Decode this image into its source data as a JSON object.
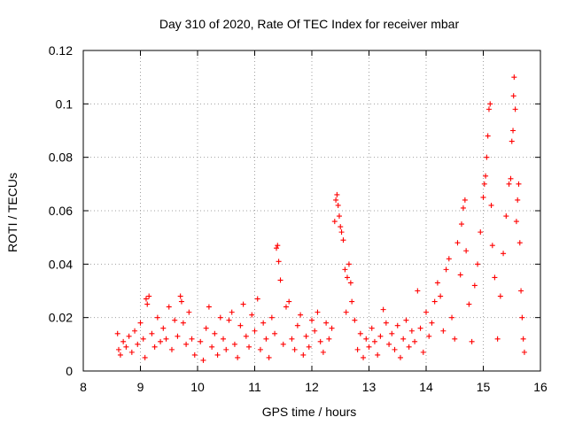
{
  "chart_data": {
    "type": "scatter",
    "title": "Day 310 of 2020, Rate Of TEC Index for receiver mbar",
    "xlabel": "GPS time / hours",
    "ylabel": "ROTI / TECUs",
    "xlim": [
      8,
      16
    ],
    "ylim": [
      0,
      0.12
    ],
    "xticks": [
      8,
      9,
      10,
      11,
      12,
      13,
      14,
      15,
      16
    ],
    "xtick_labels": [
      "8",
      "9",
      "10",
      "11",
      "12",
      "13",
      "14",
      "15",
      "16"
    ],
    "yticks": [
      0,
      0.02,
      0.04,
      0.06,
      0.08,
      0.1,
      0.12
    ],
    "ytick_labels": [
      "0",
      "0.02",
      "0.04",
      "0.06",
      "0.08",
      "0.1",
      "0.12"
    ],
    "grid": true,
    "marker": "+",
    "series": [
      {
        "name": "ROTI",
        "color": "#ff0000",
        "points": [
          [
            8.6,
            0.014
          ],
          [
            8.62,
            0.008
          ],
          [
            8.65,
            0.006
          ],
          [
            8.7,
            0.011
          ],
          [
            8.75,
            0.009
          ],
          [
            8.8,
            0.013
          ],
          [
            8.85,
            0.007
          ],
          [
            8.9,
            0.015
          ],
          [
            8.95,
            0.01
          ],
          [
            9.0,
            0.018
          ],
          [
            9.05,
            0.012
          ],
          [
            9.08,
            0.005
          ],
          [
            9.1,
            0.027
          ],
          [
            9.12,
            0.025
          ],
          [
            9.15,
            0.028
          ],
          [
            9.2,
            0.014
          ],
          [
            9.25,
            0.009
          ],
          [
            9.3,
            0.02
          ],
          [
            9.35,
            0.011
          ],
          [
            9.4,
            0.016
          ],
          [
            9.45,
            0.012
          ],
          [
            9.5,
            0.024
          ],
          [
            9.55,
            0.008
          ],
          [
            9.6,
            0.019
          ],
          [
            9.65,
            0.013
          ],
          [
            9.7,
            0.028
          ],
          [
            9.72,
            0.026
          ],
          [
            9.75,
            0.018
          ],
          [
            9.8,
            0.01
          ],
          [
            9.85,
            0.022
          ],
          [
            9.9,
            0.012
          ],
          [
            9.95,
            0.006
          ],
          [
            10.05,
            0.011
          ],
          [
            10.1,
            0.004
          ],
          [
            10.15,
            0.016
          ],
          [
            10.2,
            0.024
          ],
          [
            10.25,
            0.009
          ],
          [
            10.3,
            0.014
          ],
          [
            10.35,
            0.006
          ],
          [
            10.4,
            0.02
          ],
          [
            10.45,
            0.012
          ],
          [
            10.5,
            0.008
          ],
          [
            10.55,
            0.019
          ],
          [
            10.6,
            0.022
          ],
          [
            10.65,
            0.01
          ],
          [
            10.7,
            0.005
          ],
          [
            10.75,
            0.017
          ],
          [
            10.8,
            0.025
          ],
          [
            10.85,
            0.013
          ],
          [
            10.9,
            0.009
          ],
          [
            10.95,
            0.021
          ],
          [
            11.0,
            0.015
          ],
          [
            11.05,
            0.027
          ],
          [
            11.1,
            0.008
          ],
          [
            11.15,
            0.018
          ],
          [
            11.2,
            0.012
          ],
          [
            11.25,
            0.005
          ],
          [
            11.3,
            0.02
          ],
          [
            11.35,
            0.014
          ],
          [
            11.38,
            0.046
          ],
          [
            11.4,
            0.047
          ],
          [
            11.42,
            0.041
          ],
          [
            11.45,
            0.034
          ],
          [
            11.5,
            0.01
          ],
          [
            11.55,
            0.024
          ],
          [
            11.6,
            0.026
          ],
          [
            11.65,
            0.012
          ],
          [
            11.7,
            0.008
          ],
          [
            11.75,
            0.017
          ],
          [
            11.8,
            0.021
          ],
          [
            11.85,
            0.006
          ],
          [
            11.9,
            0.013
          ],
          [
            11.95,
            0.009
          ],
          [
            12.0,
            0.019
          ],
          [
            12.05,
            0.015
          ],
          [
            12.1,
            0.022
          ],
          [
            12.15,
            0.011
          ],
          [
            12.2,
            0.007
          ],
          [
            12.25,
            0.018
          ],
          [
            12.3,
            0.012
          ],
          [
            12.35,
            0.016
          ],
          [
            12.4,
            0.056
          ],
          [
            12.42,
            0.064
          ],
          [
            12.44,
            0.066
          ],
          [
            12.46,
            0.062
          ],
          [
            12.48,
            0.058
          ],
          [
            12.5,
            0.054
          ],
          [
            12.52,
            0.052
          ],
          [
            12.55,
            0.049
          ],
          [
            12.58,
            0.038
          ],
          [
            12.6,
            0.022
          ],
          [
            12.62,
            0.035
          ],
          [
            12.65,
            0.04
          ],
          [
            12.68,
            0.033
          ],
          [
            12.7,
            0.026
          ],
          [
            12.75,
            0.019
          ],
          [
            12.8,
            0.008
          ],
          [
            12.85,
            0.014
          ],
          [
            12.9,
            0.005
          ],
          [
            12.95,
            0.012
          ],
          [
            13.0,
            0.009
          ],
          [
            13.05,
            0.016
          ],
          [
            13.1,
            0.011
          ],
          [
            13.15,
            0.006
          ],
          [
            13.2,
            0.013
          ],
          [
            13.25,
            0.023
          ],
          [
            13.3,
            0.018
          ],
          [
            13.35,
            0.01
          ],
          [
            13.4,
            0.014
          ],
          [
            13.45,
            0.008
          ],
          [
            13.5,
            0.017
          ],
          [
            13.55,
            0.005
          ],
          [
            13.6,
            0.012
          ],
          [
            13.65,
            0.019
          ],
          [
            13.7,
            0.009
          ],
          [
            13.75,
            0.015
          ],
          [
            13.8,
            0.011
          ],
          [
            13.85,
            0.03
          ],
          [
            13.9,
            0.016
          ],
          [
            13.95,
            0.007
          ],
          [
            14.0,
            0.022
          ],
          [
            14.05,
            0.013
          ],
          [
            14.1,
            0.018
          ],
          [
            14.15,
            0.026
          ],
          [
            14.2,
            0.033
          ],
          [
            14.25,
            0.028
          ],
          [
            14.3,
            0.015
          ],
          [
            14.35,
            0.038
          ],
          [
            14.4,
            0.042
          ],
          [
            14.45,
            0.02
          ],
          [
            14.5,
            0.012
          ],
          [
            14.55,
            0.048
          ],
          [
            14.6,
            0.036
          ],
          [
            14.62,
            0.055
          ],
          [
            14.65,
            0.061
          ],
          [
            14.68,
            0.064
          ],
          [
            14.7,
            0.045
          ],
          [
            14.75,
            0.025
          ],
          [
            14.8,
            0.011
          ],
          [
            14.85,
            0.032
          ],
          [
            14.9,
            0.04
          ],
          [
            14.95,
            0.052
          ],
          [
            15.0,
            0.065
          ],
          [
            15.02,
            0.07
          ],
          [
            15.04,
            0.073
          ],
          [
            15.06,
            0.08
          ],
          [
            15.08,
            0.088
          ],
          [
            15.1,
            0.098
          ],
          [
            15.12,
            0.1
          ],
          [
            15.14,
            0.062
          ],
          [
            15.16,
            0.047
          ],
          [
            15.2,
            0.035
          ],
          [
            15.25,
            0.012
          ],
          [
            15.3,
            0.028
          ],
          [
            15.35,
            0.044
          ],
          [
            15.4,
            0.058
          ],
          [
            15.45,
            0.07
          ],
          [
            15.48,
            0.072
          ],
          [
            15.5,
            0.086
          ],
          [
            15.52,
            0.09
          ],
          [
            15.53,
            0.103
          ],
          [
            15.54,
            0.11
          ],
          [
            15.56,
            0.098
          ],
          [
            15.58,
            0.056
          ],
          [
            15.6,
            0.064
          ],
          [
            15.62,
            0.07
          ],
          [
            15.64,
            0.048
          ],
          [
            15.66,
            0.03
          ],
          [
            15.68,
            0.02
          ],
          [
            15.7,
            0.012
          ],
          [
            15.72,
            0.007
          ]
        ]
      }
    ]
  }
}
